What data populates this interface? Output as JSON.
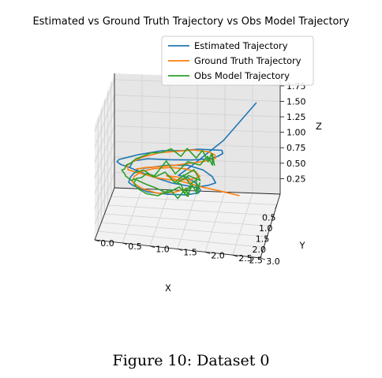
{
  "caption": "Figure 10: Dataset 0",
  "chart_data": {
    "type": "line",
    "projection": "3d",
    "title": "Estimated vs Ground Truth Trajectory vs Obs Model Trajectory",
    "xlabel": "X",
    "ylabel": "Y",
    "zlabel": "Z",
    "x_ticks": [
      "2.5",
      "2.0",
      "1.5",
      "1.0",
      "0.5"
    ],
    "y_ticks": [
      "0.0",
      "0.5",
      "1.0",
      "1.5",
      "2.0",
      "2.5",
      "3.0"
    ],
    "z_ticks": [
      "0.25",
      "0.50",
      "0.75",
      "1.00",
      "1.25",
      "1.50",
      "1.75"
    ],
    "xlim": [
      0,
      3
    ],
    "ylim": [
      0,
      3
    ],
    "zlim": [
      0,
      1.85
    ],
    "grid": true,
    "legend_position": "top-right",
    "series": [
      {
        "name": "Estimated Trajectory",
        "color": "#1f77b4",
        "x": [
          1.9,
          2.2,
          2.5,
          2.6,
          2.5,
          2.2,
          1.9,
          1.6,
          1.3,
          1.0,
          0.7,
          0.5,
          0.4,
          0.5,
          0.7,
          1.0,
          1.3,
          1.6,
          1.9,
          2.1,
          2.2,
          2.0,
          1.7,
          1.4,
          1.1,
          0.8,
          0.6,
          0.5,
          0.5,
          0.6,
          0.9,
          1.2,
          1.5,
          1.8,
          2.0,
          1.8,
          1.5,
          1.2,
          0.9,
          0.6,
          0.35,
          0.2,
          0.2,
          0.25
        ],
        "y": [
          0.5,
          0.6,
          0.9,
          1.3,
          1.7,
          2.0,
          2.1,
          2.15,
          2.1,
          1.9,
          1.6,
          1.3,
          0.9,
          0.5,
          0.3,
          0.2,
          0.2,
          0.3,
          0.5,
          0.9,
          1.3,
          1.7,
          1.9,
          2.0,
          1.9,
          1.7,
          1.4,
          1.0,
          0.7,
          0.5,
          0.4,
          0.4,
          0.5,
          0.8,
          1.2,
          1.5,
          1.7,
          1.7,
          1.6,
          1.4,
          1.2,
          1.4,
          2.0,
          2.6
        ],
        "z": [
          0.9,
          1.1,
          1.25,
          1.3,
          1.3,
          1.25,
          1.2,
          1.15,
          1.1,
          1.0,
          0.9,
          0.8,
          0.75,
          0.7,
          0.7,
          0.75,
          0.8,
          0.85,
          0.9,
          0.85,
          0.8,
          0.7,
          0.65,
          0.6,
          0.6,
          0.6,
          0.6,
          0.55,
          0.5,
          0.5,
          0.45,
          0.45,
          0.5,
          0.5,
          0.55,
          0.5,
          0.45,
          0.4,
          0.4,
          0.4,
          0.35,
          0.45,
          0.9,
          1.55
        ]
      },
      {
        "name": "Ground Truth Trajectory",
        "color": "#ff7f0e",
        "x": [
          1.8,
          2.0,
          2.2,
          2.2,
          2.0,
          1.7,
          1.4,
          1.1,
          0.8,
          0.6,
          0.55,
          0.6,
          0.8,
          1.1,
          1.4,
          1.7,
          1.9,
          2.0,
          1.9,
          1.6,
          1.3,
          1.0,
          0.8,
          0.7,
          0.75,
          0.9,
          1.2,
          1.5,
          1.8,
          1.9,
          1.7,
          1.4,
          1.1,
          0.8,
          0.6,
          0.5,
          0.45,
          0.4,
          0.35,
          0.3
        ],
        "y": [
          0.6,
          0.8,
          1.1,
          1.4,
          1.7,
          1.9,
          2.0,
          1.95,
          1.8,
          1.5,
          1.2,
          0.9,
          0.6,
          0.45,
          0.4,
          0.45,
          0.7,
          1.0,
          1.3,
          1.6,
          1.7,
          1.6,
          1.4,
          1.1,
          0.8,
          0.6,
          0.5,
          0.5,
          0.7,
          1.0,
          1.3,
          1.5,
          1.55,
          1.45,
          1.2,
          1.0,
          1.2,
          1.6,
          2.0,
          2.3
        ],
        "z": [
          0.85,
          0.95,
          1.05,
          1.1,
          1.1,
          1.05,
          1.0,
          0.95,
          0.9,
          0.85,
          0.8,
          0.78,
          0.75,
          0.75,
          0.78,
          0.8,
          0.82,
          0.8,
          0.75,
          0.7,
          0.65,
          0.62,
          0.6,
          0.58,
          0.56,
          0.55,
          0.55,
          0.55,
          0.55,
          0.52,
          0.5,
          0.48,
          0.45,
          0.42,
          0.4,
          0.38,
          0.3,
          0.2,
          0.12,
          0.05
        ]
      },
      {
        "name": "Obs Model Trajectory",
        "color": "#2ca02c",
        "x": [
          2.0,
          2.3,
          2.45,
          2.2,
          2.5,
          2.3,
          2.1,
          1.8,
          1.9,
          1.5,
          1.6,
          1.2,
          1.3,
          0.9,
          1.0,
          0.7,
          0.8,
          0.6,
          0.5,
          0.7,
          0.55,
          0.9,
          0.8,
          1.1,
          1.0,
          1.4,
          1.3,
          1.7,
          1.6,
          2.0,
          1.9,
          2.2,
          2.1,
          1.9,
          2.0,
          1.6,
          1.7,
          1.3,
          1.4,
          1.0,
          1.1,
          0.8,
          0.9,
          0.7,
          0.8,
          1.0,
          0.9,
          1.3,
          1.2,
          1.6,
          1.5,
          1.9,
          1.8,
          1.6,
          1.7,
          1.3,
          1.4,
          1.0,
          1.1,
          0.8,
          0.6,
          0.5,
          0.4,
          0.5,
          0.35
        ],
        "y": [
          0.6,
          0.8,
          1.0,
          1.2,
          1.4,
          1.6,
          1.8,
          1.9,
          2.0,
          1.95,
          2.0,
          1.9,
          1.85,
          1.7,
          1.6,
          1.4,
          1.3,
          1.1,
          0.9,
          0.75,
          0.6,
          0.5,
          0.4,
          0.35,
          0.3,
          0.3,
          0.35,
          0.4,
          0.5,
          0.6,
          0.8,
          1.0,
          1.2,
          1.4,
          1.55,
          1.6,
          1.7,
          1.7,
          1.65,
          1.6,
          1.5,
          1.35,
          1.2,
          1.0,
          0.85,
          0.7,
          0.6,
          0.55,
          0.5,
          0.55,
          0.6,
          0.8,
          1.0,
          1.2,
          1.35,
          1.45,
          1.5,
          1.5,
          1.4,
          1.3,
          1.2,
          1.4,
          1.6,
          1.5,
          1.3
        ],
        "z": [
          0.85,
          1.0,
          0.95,
          1.15,
          1.05,
          1.2,
          1.1,
          1.15,
          1.05,
          1.1,
          0.95,
          1.0,
          0.9,
          0.95,
          0.85,
          0.9,
          0.8,
          0.85,
          0.75,
          0.8,
          0.7,
          0.75,
          0.65,
          0.7,
          0.6,
          0.7,
          0.6,
          0.7,
          0.6,
          0.75,
          0.65,
          0.7,
          0.6,
          0.65,
          0.55,
          0.6,
          0.5,
          0.55,
          0.45,
          0.5,
          0.45,
          0.5,
          0.4,
          0.5,
          0.45,
          0.55,
          0.45,
          0.55,
          0.45,
          0.55,
          0.45,
          0.5,
          0.45,
          0.5,
          0.4,
          0.45,
          0.35,
          0.4,
          0.3,
          0.35,
          0.3,
          0.4,
          0.3,
          0.5,
          0.35
        ]
      }
    ]
  }
}
